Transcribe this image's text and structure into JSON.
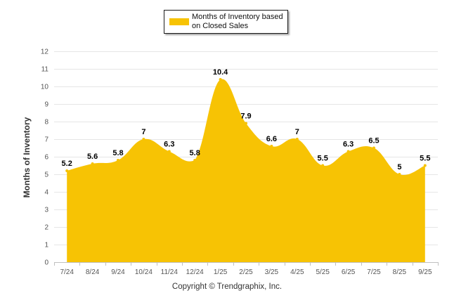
{
  "legend": {
    "label": "Months of Inventory based on Closed Sales"
  },
  "credit": "Copyright © Trendgraphix, Inc.",
  "colors": {
    "series_fill": "#F7C304",
    "grid": "#e6e6e6",
    "axis": "#c0c0c0"
  },
  "chart_data": {
    "type": "area",
    "title": "",
    "xlabel": "",
    "ylabel": "Months of Inventory",
    "ylim": [
      0,
      12
    ],
    "yticks": [
      0,
      1,
      2,
      3,
      4,
      5,
      6,
      7,
      8,
      9,
      10,
      11,
      12
    ],
    "grid": true,
    "legend_position": "top-center",
    "categories": [
      "7/24",
      "8/24",
      "9/24",
      "10/24",
      "11/24",
      "12/24",
      "1/25",
      "2/25",
      "3/25",
      "4/25",
      "5/25",
      "6/25",
      "7/25",
      "8/25",
      "9/25"
    ],
    "series": [
      {
        "name": "Months of Inventory based on Closed Sales",
        "values": [
          5.2,
          5.6,
          5.8,
          7,
          6.3,
          5.8,
          10.4,
          7.9,
          6.6,
          7,
          5.5,
          6.3,
          6.5,
          5,
          5.5
        ],
        "labels": [
          "5.2",
          "5.6",
          "5.8",
          "7",
          "6.3",
          "5.8",
          "10.4",
          "7.9",
          "6.6",
          "7",
          "5.5",
          "6.3",
          "6.5",
          "5",
          "5.5"
        ]
      }
    ]
  }
}
